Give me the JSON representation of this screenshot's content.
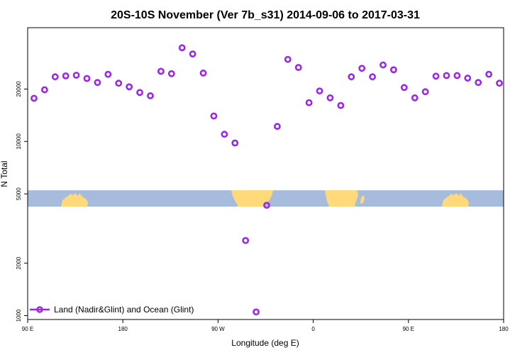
{
  "chart_data": {
    "type": "scatter",
    "title": "20S-10S November (Ver 7b_s31)   2014-09-06 to 2017-03-31",
    "xlabel": "Longitude (deg E)",
    "ylabel": "N Total",
    "xlim": [
      90,
      540
    ],
    "y_scale": "log",
    "ylim": [
      950,
      45000
    ],
    "x_ticks": [
      {
        "value": 90,
        "label": "90 E"
      },
      {
        "value": 180,
        "label": "180"
      },
      {
        "value": 270,
        "label": "90 W"
      },
      {
        "value": 360,
        "label": "0"
      },
      {
        "value": 450,
        "label": "90 E"
      },
      {
        "value": 540,
        "label": "180"
      }
    ],
    "y_ticks": [
      {
        "value": 1000,
        "label": "1000"
      },
      {
        "value": 2000,
        "label": "2000"
      },
      {
        "value": 5000,
        "label": "5000"
      },
      {
        "value": 10000,
        "label": "10000"
      },
      {
        "value": 20000,
        "label": "20000"
      }
    ],
    "grid": false,
    "legend_position": "bottom-left",
    "marker_color": "#9b27e8",
    "map_colors": {
      "ocean": "#a7bcdc",
      "land": "#ffd97a"
    },
    "series": [
      {
        "name": "Land (Nadir&Glint) and Ocean (Glint)",
        "points": [
          [
            96,
            17700
          ],
          [
            106,
            19800
          ],
          [
            116,
            23500
          ],
          [
            126,
            23800
          ],
          [
            136,
            24000
          ],
          [
            146,
            23000
          ],
          [
            156,
            21800
          ],
          [
            166,
            24300
          ],
          [
            176,
            21600
          ],
          [
            186,
            20600
          ],
          [
            196,
            19100
          ],
          [
            206,
            18300
          ],
          [
            216,
            25300
          ],
          [
            226,
            24500
          ],
          [
            236,
            34500
          ],
          [
            246,
            31800
          ],
          [
            256,
            24700
          ],
          [
            266,
            14000
          ],
          [
            276,
            11000
          ],
          [
            286,
            9800
          ],
          [
            296,
            2700
          ],
          [
            306,
            1050
          ],
          [
            316,
            4300
          ],
          [
            326,
            12200
          ],
          [
            336,
            29600
          ],
          [
            346,
            26600
          ],
          [
            356,
            16700
          ],
          [
            366,
            19500
          ],
          [
            376,
            17800
          ],
          [
            386,
            16100
          ],
          [
            396,
            23500
          ],
          [
            406,
            26300
          ],
          [
            416,
            23500
          ],
          [
            426,
            27500
          ],
          [
            436,
            25800
          ],
          [
            446,
            20400
          ],
          [
            456,
            17800
          ],
          [
            466,
            19300
          ],
          [
            476,
            23700
          ],
          [
            486,
            23900
          ],
          [
            496,
            23900
          ],
          [
            506,
            23100
          ],
          [
            516,
            21800
          ],
          [
            526,
            24300
          ],
          [
            536,
            21600
          ]
        ]
      }
    ]
  }
}
